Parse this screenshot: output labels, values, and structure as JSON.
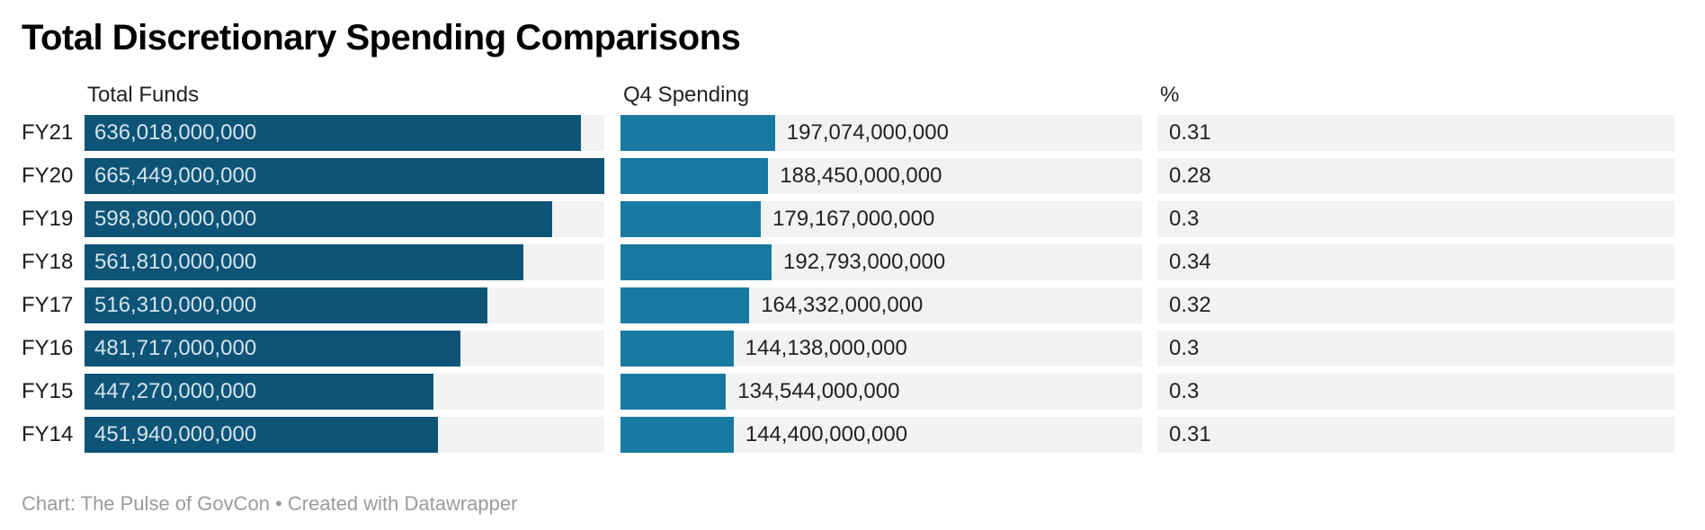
{
  "title": "Total Discretionary Spending Comparisons",
  "columns": {
    "funds": "Total Funds",
    "q4": "Q4 Spending",
    "pct": "%"
  },
  "footer": "Chart: The Pulse of GovCon • Created with Datawrapper",
  "colors": {
    "funds_bar": "#0e5477",
    "q4_bar": "#1879a1",
    "track": "#f2f2f2",
    "funds_bar_label": "#d4e4ee",
    "value_text": "#222222",
    "footer_text": "#9b9b9b"
  },
  "chart_data": {
    "type": "bar",
    "title": "Total Discretionary Spending Comparisons",
    "categories": [
      "FY21",
      "FY20",
      "FY19",
      "FY18",
      "FY17",
      "FY16",
      "FY15",
      "FY14"
    ],
    "series": [
      {
        "name": "Total Funds",
        "values": [
          636018000000,
          665449000000,
          598800000000,
          561810000000,
          516310000000,
          481717000000,
          447270000000,
          451940000000
        ]
      },
      {
        "name": "Q4 Spending",
        "values": [
          197074000000,
          188450000000,
          179167000000,
          192793000000,
          164332000000,
          144138000000,
          134544000000,
          144400000000
        ]
      },
      {
        "name": "%",
        "values": [
          0.31,
          0.28,
          0.3,
          0.34,
          0.32,
          0.3,
          0.3,
          0.31
        ]
      }
    ],
    "scale_max": 665449000000,
    "legend": "none",
    "grid": "off",
    "rows": [
      {
        "label": "FY21",
        "funds": 636018000000,
        "funds_label": "636,018,000,000",
        "q4": 197074000000,
        "q4_label": "197,074,000,000",
        "pct_label": "0.31"
      },
      {
        "label": "FY20",
        "funds": 665449000000,
        "funds_label": "665,449,000,000",
        "q4": 188450000000,
        "q4_label": "188,450,000,000",
        "pct_label": "0.28"
      },
      {
        "label": "FY19",
        "funds": 598800000000,
        "funds_label": "598,800,000,000",
        "q4": 179167000000,
        "q4_label": "179,167,000,000",
        "pct_label": "0.3"
      },
      {
        "label": "FY18",
        "funds": 561810000000,
        "funds_label": "561,810,000,000",
        "q4": 192793000000,
        "q4_label": "192,793,000,000",
        "pct_label": "0.34"
      },
      {
        "label": "FY17",
        "funds": 516310000000,
        "funds_label": "516,310,000,000",
        "q4": 164332000000,
        "q4_label": "164,332,000,000",
        "pct_label": "0.32"
      },
      {
        "label": "FY16",
        "funds": 481717000000,
        "funds_label": "481,717,000,000",
        "q4": 144138000000,
        "q4_label": "144,138,000,000",
        "pct_label": "0.3"
      },
      {
        "label": "FY15",
        "funds": 447270000000,
        "funds_label": "447,270,000,000",
        "q4": 134544000000,
        "q4_label": "134,544,000,000",
        "pct_label": "0.3"
      },
      {
        "label": "FY14",
        "funds": 451940000000,
        "funds_label": "451,940,000,000",
        "q4": 144400000000,
        "q4_label": "144,400,000,000",
        "pct_label": "0.31"
      }
    ]
  }
}
